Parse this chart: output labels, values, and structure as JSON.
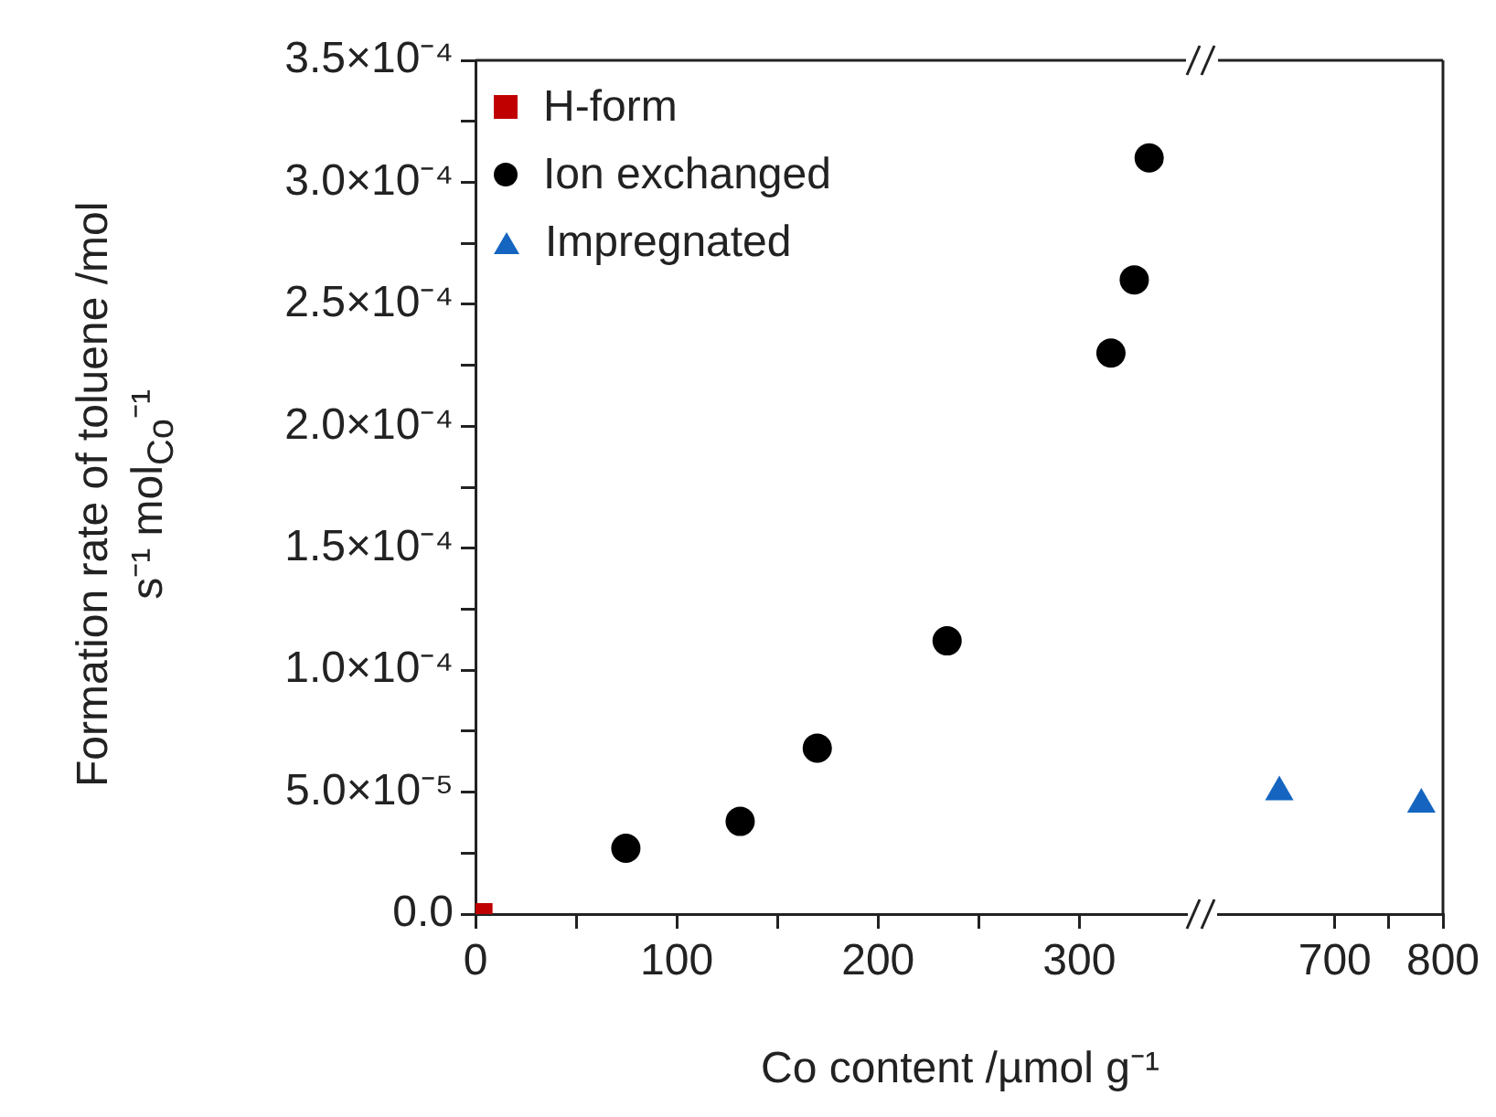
{
  "chart_data": [
    {
      "type": "scatter",
      "xlabel": "Co content /µmol g⁻¹",
      "ylabel": "Formation rate of toluene /mol s⁻¹ mol$_{Co}$⁻¹",
      "legend": "top left",
      "grid": false,
      "xlim": [
        0,
        353
      ],
      "xticks": [
        0,
        {
          "value": 50,
          "label": null
        },
        100,
        {
          "value": 150,
          "label": null
        },
        200,
        {
          "value": 250,
          "label": null
        },
        300
      ],
      "ylim": [
        0,
        0.00035
      ],
      "yticks": [
        {
          "value": 0,
          "label": "0.0"
        },
        {
          "value": 2.5e-05,
          "label": null
        },
        {
          "value": 5e-05,
          "label": "5.0×10⁻⁵"
        },
        {
          "value": 7.5e-05,
          "label": null
        },
        {
          "value": 0.0001,
          "label": "1.0×10⁻⁴"
        },
        {
          "value": 0.000125,
          "label": null
        },
        {
          "value": 0.00015,
          "label": "1.5×10⁻⁴"
        },
        {
          "value": 0.000175,
          "label": null
        },
        {
          "value": 0.0002,
          "label": "2.0×10⁻⁴"
        },
        {
          "value": 0.000225,
          "label": null
        },
        {
          "value": 0.00025,
          "label": "2.5×10⁻⁴"
        },
        {
          "value": 0.000275,
          "label": null
        },
        {
          "value": 0.0003,
          "label": "3.0×10⁻⁴"
        },
        {
          "value": 0.000325,
          "label": null
        },
        {
          "value": 0.00035,
          "label": "3.5×10⁻⁴"
        }
      ],
      "series": [
        {
          "name": "H-form",
          "color": "#c00000",
          "marker": "square",
          "x": [
            3
          ],
          "values": [
            0
          ]
        },
        {
          "name": "Ion exchanged",
          "color": "#000000",
          "marker": "circle",
          "x": [
            74.7,
            131.5,
            169.8,
            234.3,
            315.7,
            327.3,
            334.7
          ],
          "values": [
            2.7e-05,
            3.8e-05,
            6.8e-05,
            0.000112,
            0.00023,
            0.00026,
            0.00031
          ]
        }
      ]
    },
    {
      "type": "scatter",
      "grid": false,
      "tick_labels": "x",
      "xlim": [
        592,
        800
      ],
      "xticks": [
        700,
        {
          "value": 750,
          "label": null
        },
        800
      ],
      "ylim": [
        0,
        0.00035
      ],
      "series": [
        {
          "name": "Impregnated",
          "color": "#1565c0",
          "marker": "triangle",
          "x": [
            648.7,
            780
          ],
          "values": [
            5e-05,
            4.5e-05
          ]
        }
      ]
    }
  ]
}
